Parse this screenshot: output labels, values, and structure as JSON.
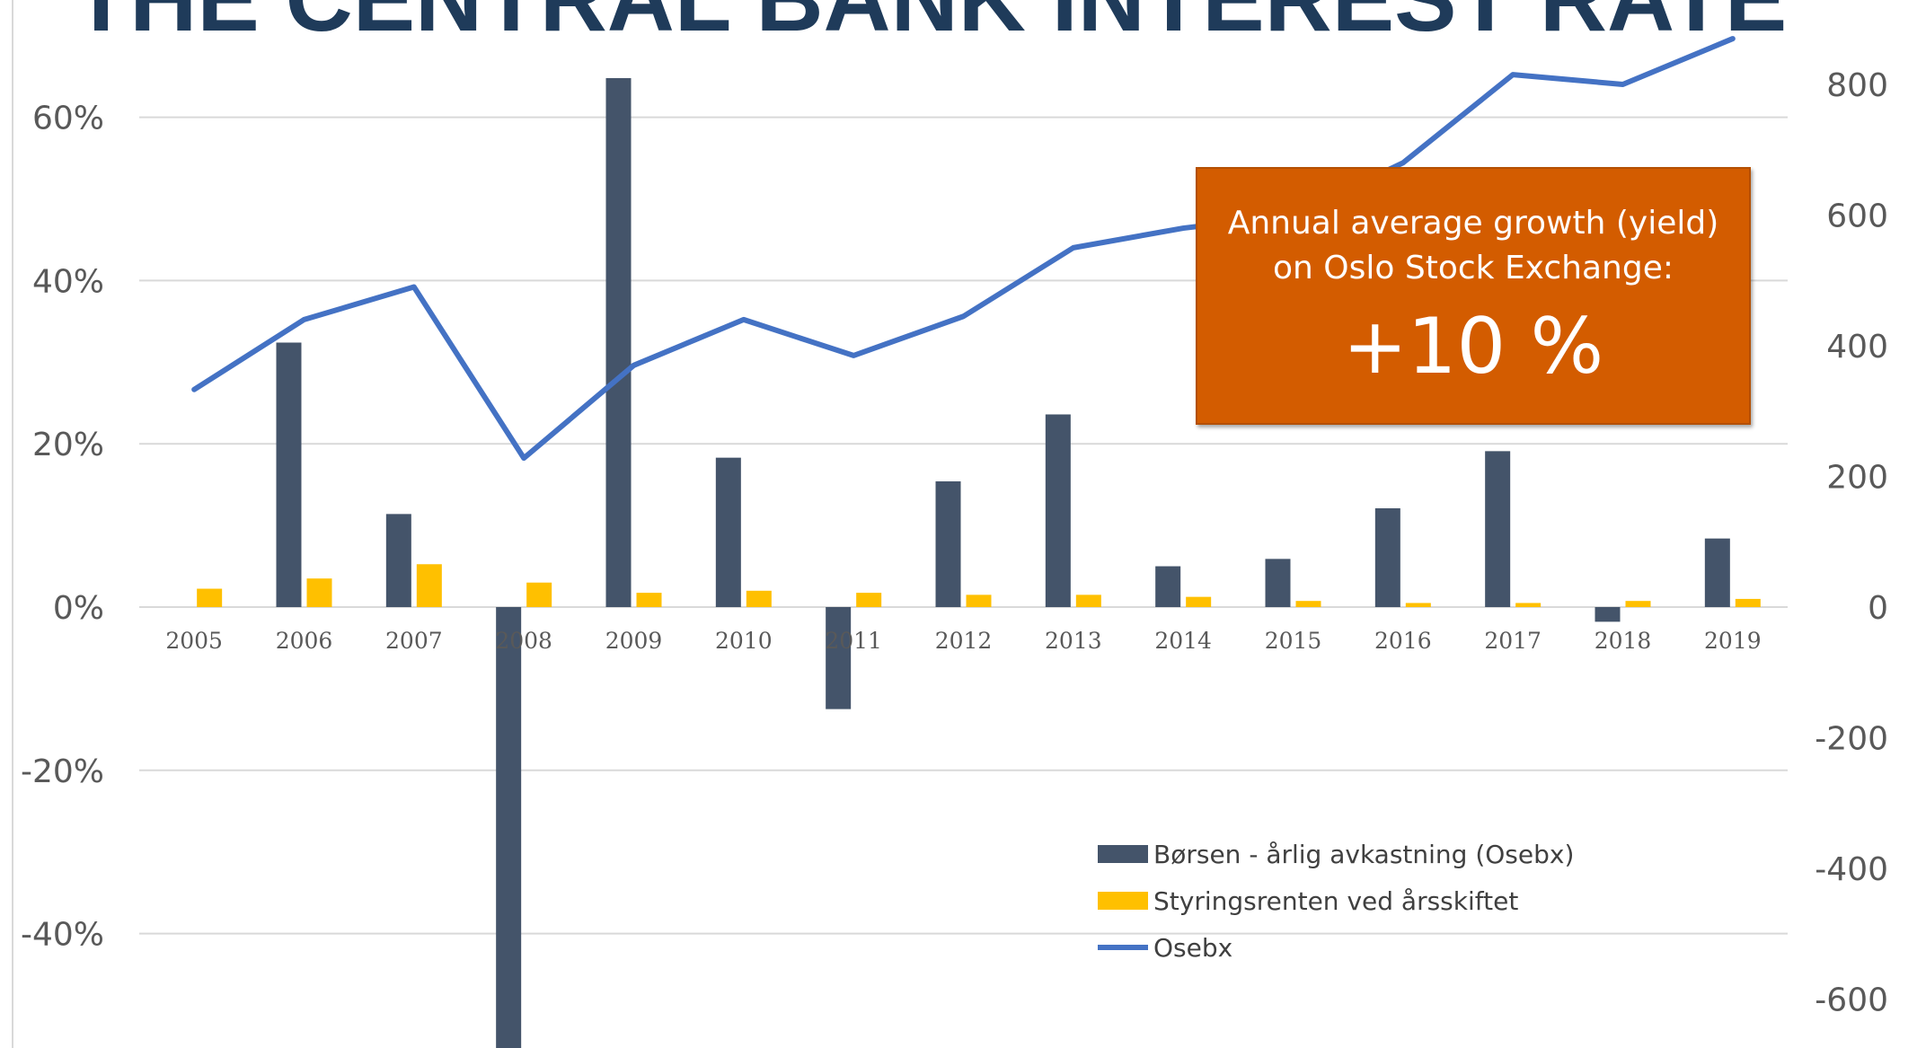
{
  "chart_data": {
    "type": "bar",
    "title": "THE CENTRAL BANK INTEREST RATE",
    "categories": [
      "2005",
      "2006",
      "2007",
      "2008",
      "2009",
      "2010",
      "2011",
      "2012",
      "2013",
      "2014",
      "2015",
      "2016",
      "2017",
      "2018",
      "2019"
    ],
    "series": [
      {
        "name": "Børsen - årlig avkastning  (Osebx)",
        "type": "bar",
        "axis": "left",
        "color": "#44546a",
        "values": [
          0,
          32.4,
          11.4,
          -54.1,
          64.8,
          18.3,
          -12.5,
          15.4,
          23.6,
          5.0,
          5.9,
          12.1,
          19.1,
          -1.8,
          8.4
        ]
      },
      {
        "name": "Styringsrenten ved årsskiftet",
        "type": "bar",
        "axis": "left",
        "color": "#ffc000",
        "values": [
          2.25,
          3.5,
          5.25,
          3.0,
          1.75,
          2.0,
          1.75,
          1.5,
          1.5,
          1.25,
          0.75,
          0.5,
          0.5,
          0.75,
          1.0
        ]
      },
      {
        "name": "Osebx",
        "type": "line",
        "axis": "right",
        "color": "#4472c4",
        "values": [
          333,
          440,
          490,
          228,
          370,
          440,
          385,
          445,
          550,
          580,
          600,
          680,
          815,
          800,
          870
        ]
      }
    ],
    "y_left": {
      "ticks": [
        60,
        40,
        20,
        0,
        -20,
        -40
      ],
      "tick_labels": [
        "60%",
        "40%",
        "20%",
        "0%",
        "-20%",
        "-40%"
      ]
    },
    "y_right": {
      "ticks": [
        800,
        600,
        400,
        200,
        0,
        -200,
        -400,
        -600
      ],
      "tick_labels": [
        "800",
        "600",
        "400",
        "200",
        "0",
        "-200",
        "-400",
        "-600"
      ]
    },
    "legend_placement": "bottom-right",
    "grid": true
  },
  "callout": {
    "line1": "Annual average growth  (yield)",
    "line2": "on Oslo Stock Exchange:",
    "value": "+10 %"
  }
}
